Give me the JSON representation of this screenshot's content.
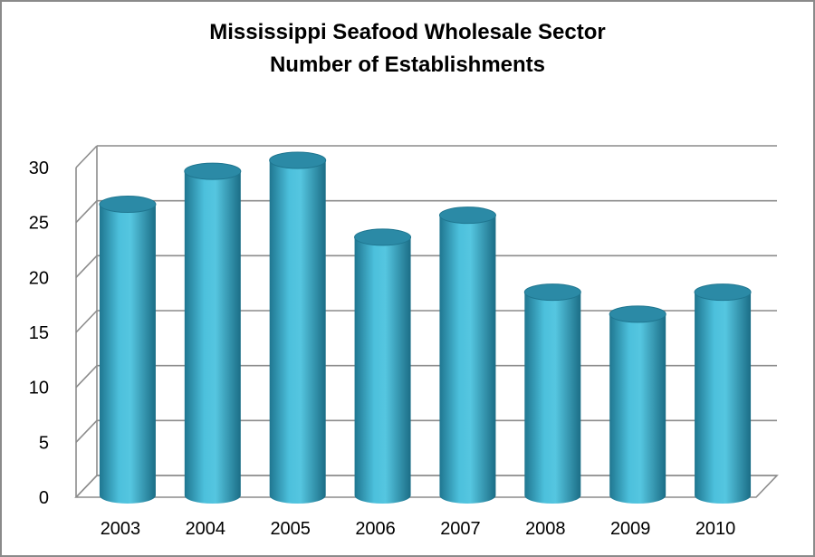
{
  "chart_data": {
    "type": "bar",
    "style": "3d-cylinder",
    "title_lines": [
      "Mississippi Seafood Wholesale Sector",
      "Number of Establishments"
    ],
    "categories": [
      "2003",
      "2004",
      "2005",
      "2006",
      "2007",
      "2008",
      "2009",
      "2010"
    ],
    "values": [
      26,
      29,
      30,
      23,
      25,
      18,
      16,
      18
    ],
    "xlabel": "",
    "ylabel": "",
    "ylim": [
      0,
      30
    ],
    "yticks": [
      "0",
      "5",
      "10",
      "15",
      "20",
      "25",
      "30"
    ],
    "grid": true,
    "legend": "none",
    "colors": {
      "bar": "#3aa8c4",
      "bar_dark": "#1d6f86",
      "bar_light": "#7fd0e4",
      "top": "#2b8aa6",
      "grid": "#8c8c8c"
    }
  }
}
